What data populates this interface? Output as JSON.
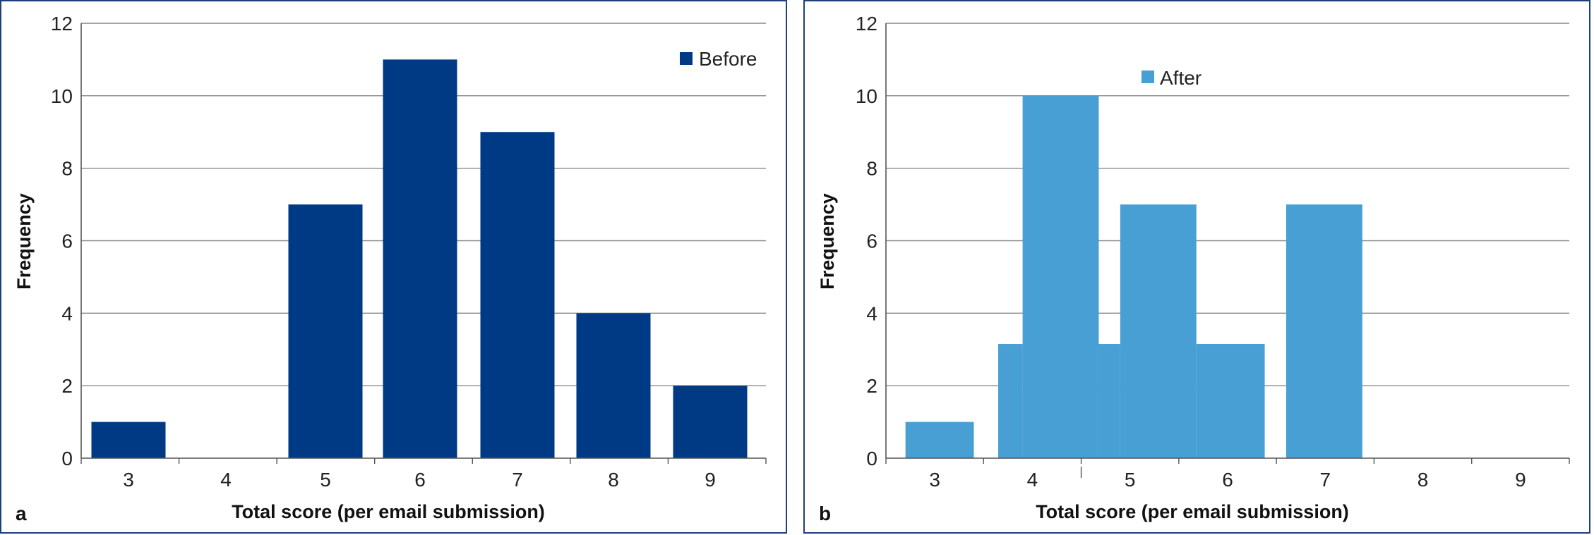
{
  "chart_data": [
    {
      "type": "bar",
      "panel_label": "a",
      "xlabel": "Total score (per email submission)",
      "ylabel": "Frequency",
      "ylim": [
        0,
        12
      ],
      "yticks": [
        0,
        2,
        4,
        6,
        8,
        10,
        12
      ],
      "grid": true,
      "legend_position": "top-right",
      "categories": [
        "3",
        "4",
        "5",
        "6",
        "7",
        "8",
        "9"
      ],
      "series": [
        {
          "name": "Before",
          "color": "#003a85",
          "values": [
            1,
            0,
            7,
            11,
            9,
            4,
            2
          ]
        }
      ]
    },
    {
      "type": "bar",
      "panel_label": "b",
      "xlabel": "Total score (per email submission)",
      "ylabel": "Frequency",
      "ylim": [
        0,
        12
      ],
      "yticks": [
        0,
        2,
        4,
        6,
        8,
        10,
        12
      ],
      "grid": true,
      "legend_position": "top-center",
      "categories": [
        "3",
        "4",
        "5",
        "6",
        "7",
        "8",
        "9"
      ],
      "series": [
        {
          "name": "After",
          "color": "#479fd4",
          "bins": [
            {
              "x0": 2.7,
              "x1": 3.4,
              "y": 1
            },
            {
              "x0": 3.65,
              "x1": 3.9,
              "y": 3.15
            },
            {
              "x0": 3.9,
              "x1": 4.68,
              "y": 10
            },
            {
              "x0": 4.68,
              "x1": 4.9,
              "y": 3.15
            },
            {
              "x0": 4.9,
              "x1": 5.68,
              "y": 7
            },
            {
              "x0": 5.68,
              "x1": 6.38,
              "y": 3.15
            },
            {
              "x0": 6.6,
              "x1": 7.38,
              "y": 7
            }
          ]
        }
      ]
    }
  ]
}
